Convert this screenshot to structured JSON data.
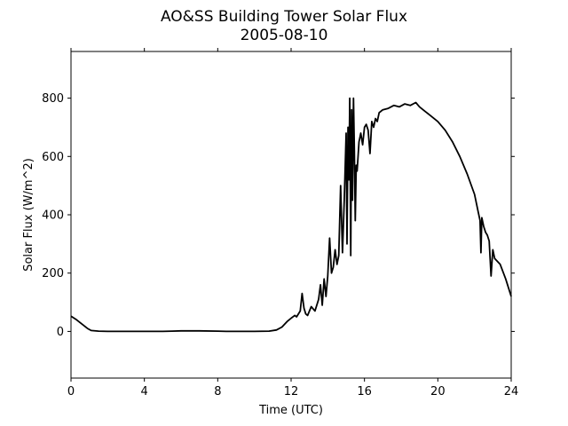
{
  "chart_data": {
    "type": "line",
    "title": "AO&SS Building Tower Solar Flux",
    "subtitle": "2005-08-10",
    "xlabel": "Time (UTC)",
    "ylabel": "Solar Flux (W/m^2)",
    "xlim": [
      0,
      24
    ],
    "ylim": [
      -160,
      960
    ],
    "xticks": [
      0,
      4,
      8,
      12,
      16,
      20,
      24
    ],
    "yticks": [
      0,
      200,
      400,
      600,
      800
    ],
    "xtick_labels": [
      "0",
      "4",
      "8",
      "12",
      "16",
      "20",
      "24"
    ],
    "ytick_labels": [
      "0",
      "200",
      "400",
      "600",
      "800"
    ],
    "grid": false,
    "line_color": "#000000",
    "series": [
      {
        "x": [
          0,
          0.3,
          0.6,
          0.9,
          1.1,
          1.5,
          2,
          3,
          4,
          5,
          5.5,
          6,
          7,
          8,
          8.5,
          9,
          10,
          10.8,
          11.2,
          11.5,
          11.8,
          12.0,
          12.2,
          12.3,
          12.5,
          12.6,
          12.7,
          12.8,
          12.9,
          13.0,
          13.1,
          13.3,
          13.5,
          13.6,
          13.7,
          13.8,
          13.9,
          14.0,
          14.1,
          14.2,
          14.3,
          14.4,
          14.5,
          14.6,
          14.7,
          14.8,
          14.9,
          15.0,
          15.05,
          15.1,
          15.15,
          15.2,
          15.25,
          15.3,
          15.35,
          15.4,
          15.45,
          15.5,
          15.55,
          15.6,
          15.7,
          15.8,
          15.9,
          16.0,
          16.1,
          16.2,
          16.3,
          16.4,
          16.5,
          16.6,
          16.7,
          16.8,
          17.0,
          17.3,
          17.6,
          17.9,
          18.2,
          18.5,
          18.8,
          19.0,
          19.3,
          19.6,
          20.0,
          20.4,
          20.8,
          21.2,
          21.6,
          22.0,
          22.2,
          22.3,
          22.35,
          22.4,
          22.5,
          22.6,
          22.7,
          22.8,
          22.9,
          23.0,
          23.1,
          23.4,
          23.7,
          24.0
        ],
        "y": [
          52,
          40,
          25,
          10,
          3,
          1,
          0,
          0,
          0,
          0,
          1,
          2,
          2,
          1,
          0,
          0,
          0,
          1,
          5,
          15,
          35,
          45,
          55,
          50,
          70,
          130,
          80,
          60,
          55,
          70,
          85,
          70,
          110,
          160,
          90,
          180,
          120,
          190,
          320,
          200,
          220,
          280,
          230,
          260,
          500,
          270,
          450,
          680,
          300,
          700,
          520,
          800,
          260,
          760,
          450,
          800,
          620,
          380,
          570,
          550,
          650,
          680,
          640,
          700,
          710,
          690,
          610,
          720,
          700,
          730,
          720,
          750,
          760,
          765,
          775,
          770,
          780,
          775,
          785,
          770,
          755,
          740,
          720,
          690,
          650,
          600,
          540,
          470,
          410,
          380,
          270,
          390,
          360,
          340,
          330,
          310,
          190,
          280,
          250,
          230,
          180,
          120
        ]
      }
    ]
  }
}
